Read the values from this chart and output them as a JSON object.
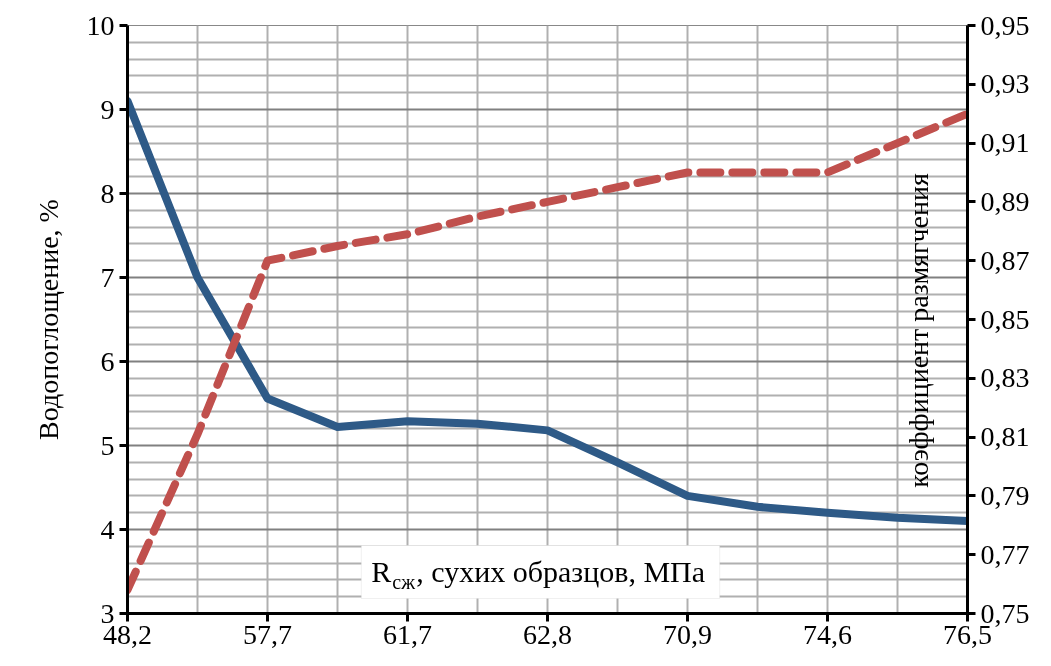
{
  "chart_data": {
    "type": "line",
    "categories": [
      "48,2",
      null,
      "57,7",
      null,
      "61,7",
      null,
      "62,8",
      null,
      "70,9",
      null,
      "74,6",
      null,
      "76,5"
    ],
    "series": [
      {
        "name": null,
        "color": "#2e5a87",
        "line_style": "solid",
        "values": [
          9.1,
          7.0,
          5.56,
          5.22,
          5.29,
          5.26,
          5.18,
          4.8,
          4.4,
          4.27,
          4.2,
          4.14,
          4.1
        ]
      },
      {
        "name": null,
        "color": "#c0504d",
        "line_style": "dashed",
        "axis": "y2",
        "values": [
          0.758,
          0.811,
          0.87,
          0.875,
          0.879,
          0.885,
          0.89,
          0.895,
          0.9,
          0.9,
          0.9,
          0.91,
          0.92
        ]
      }
    ],
    "xlabel": "R$_{сж}$, сухих образцов, МПа",
    "ylabel": "Водопоглощение, %",
    "y2label": "коэффициент размягчения",
    "ylim": [
      3,
      10
    ],
    "yticks": [
      3,
      4,
      5,
      6,
      7,
      8,
      9,
      10
    ],
    "y2lim": [
      0.75,
      0.95
    ],
    "y2ticks": [
      {
        "value": 0.75,
        "label": "0,75"
      },
      {
        "value": 0.77,
        "label": "0,77"
      },
      {
        "value": 0.79,
        "label": "0,79"
      },
      {
        "value": 0.81,
        "label": "0,81"
      },
      {
        "value": 0.83,
        "label": "0,83"
      },
      {
        "value": 0.85,
        "label": "0,85"
      },
      {
        "value": 0.87,
        "label": "0,87"
      },
      {
        "value": 0.89,
        "label": "0,89"
      },
      {
        "value": 0.91,
        "label": "0,91"
      },
      {
        "value": 0.93,
        "label": "0,93"
      },
      {
        "value": 0.95,
        "label": "0,95"
      }
    ],
    "grid": true,
    "marker": "none"
  }
}
